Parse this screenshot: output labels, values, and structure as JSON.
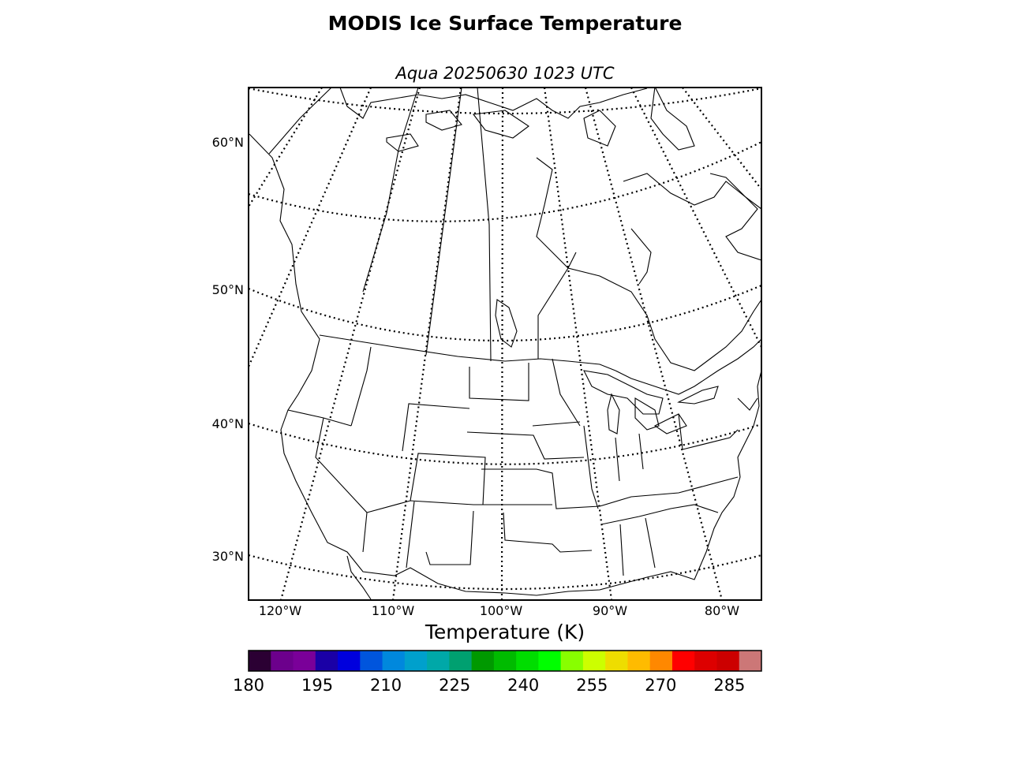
{
  "title": "MODIS Ice Surface Temperature",
  "subtitle": "Aqua 20250630 1023 UTC",
  "lat_labels": [
    "60°N",
    "50°N",
    "40°N",
    "30°N"
  ],
  "lon_labels": [
    "120°W",
    "110°W",
    "100°W",
    "90°W",
    "80°W"
  ],
  "colorbar": {
    "label": "Temperature (K)",
    "min": 180,
    "max": 292,
    "ticks": [
      "180",
      "195",
      "210",
      "225",
      "240",
      "255",
      "270",
      "285"
    ],
    "colors": [
      "#2b0033",
      "#6c008c",
      "#7a0099",
      "#1a00a6",
      "#0000dd",
      "#0055dd",
      "#0088dd",
      "#00a0cc",
      "#00a8a8",
      "#00a070",
      "#009900",
      "#00bb00",
      "#00dd00",
      "#00ff00",
      "#88ff00",
      "#ccff00",
      "#eedd00",
      "#ffbb00",
      "#ff8800",
      "#ff0000",
      "#dd0000",
      "#cc0000",
      "#cc7777"
    ]
  }
}
